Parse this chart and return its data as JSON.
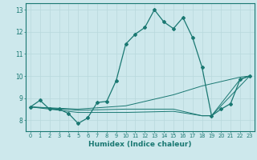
{
  "title": "",
  "xlabel": "Humidex (Indice chaleur)",
  "ylabel": "",
  "background_color": "#cde8ec",
  "grid_color": "#b8d8dc",
  "line_color": "#1a7872",
  "xlim": [
    -0.5,
    23.5
  ],
  "ylim": [
    7.5,
    13.3
  ],
  "x_ticks": [
    0,
    1,
    2,
    3,
    4,
    5,
    6,
    7,
    8,
    9,
    10,
    11,
    12,
    13,
    14,
    15,
    16,
    17,
    18,
    19,
    20,
    21,
    22,
    23
  ],
  "y_ticks": [
    8,
    9,
    10,
    11,
    12,
    13
  ],
  "curves": [
    {
      "x": [
        0,
        1,
        2,
        3,
        4,
        5,
        6,
        7,
        8,
        9,
        10,
        11,
        12,
        13,
        14,
        15,
        16,
        17,
        18,
        19,
        20,
        21,
        22,
        23
      ],
      "y": [
        8.6,
        8.9,
        8.5,
        8.5,
        8.3,
        7.85,
        8.1,
        8.8,
        8.85,
        9.8,
        11.45,
        11.9,
        12.2,
        13.0,
        12.45,
        12.15,
        12.65,
        11.75,
        10.4,
        8.2,
        8.5,
        8.75,
        9.85,
        10.0
      ],
      "marker": "D",
      "markersize": 2.0,
      "linewidth": 0.9
    },
    {
      "x": [
        0,
        5,
        10,
        15,
        18,
        19,
        21,
        22,
        23
      ],
      "y": [
        8.6,
        8.5,
        8.65,
        9.15,
        9.55,
        9.65,
        9.85,
        9.95,
        10.0
      ],
      "marker": null,
      "markersize": 0,
      "linewidth": 0.7
    },
    {
      "x": [
        0,
        5,
        10,
        15,
        18,
        19,
        22,
        23
      ],
      "y": [
        8.6,
        8.45,
        8.5,
        8.5,
        8.2,
        8.2,
        9.55,
        10.0
      ],
      "marker": null,
      "markersize": 0,
      "linewidth": 0.7
    },
    {
      "x": [
        0,
        5,
        10,
        15,
        18,
        19,
        22,
        23
      ],
      "y": [
        8.6,
        8.35,
        8.35,
        8.4,
        8.2,
        8.2,
        9.85,
        10.0
      ],
      "marker": null,
      "markersize": 0,
      "linewidth": 0.7
    }
  ]
}
